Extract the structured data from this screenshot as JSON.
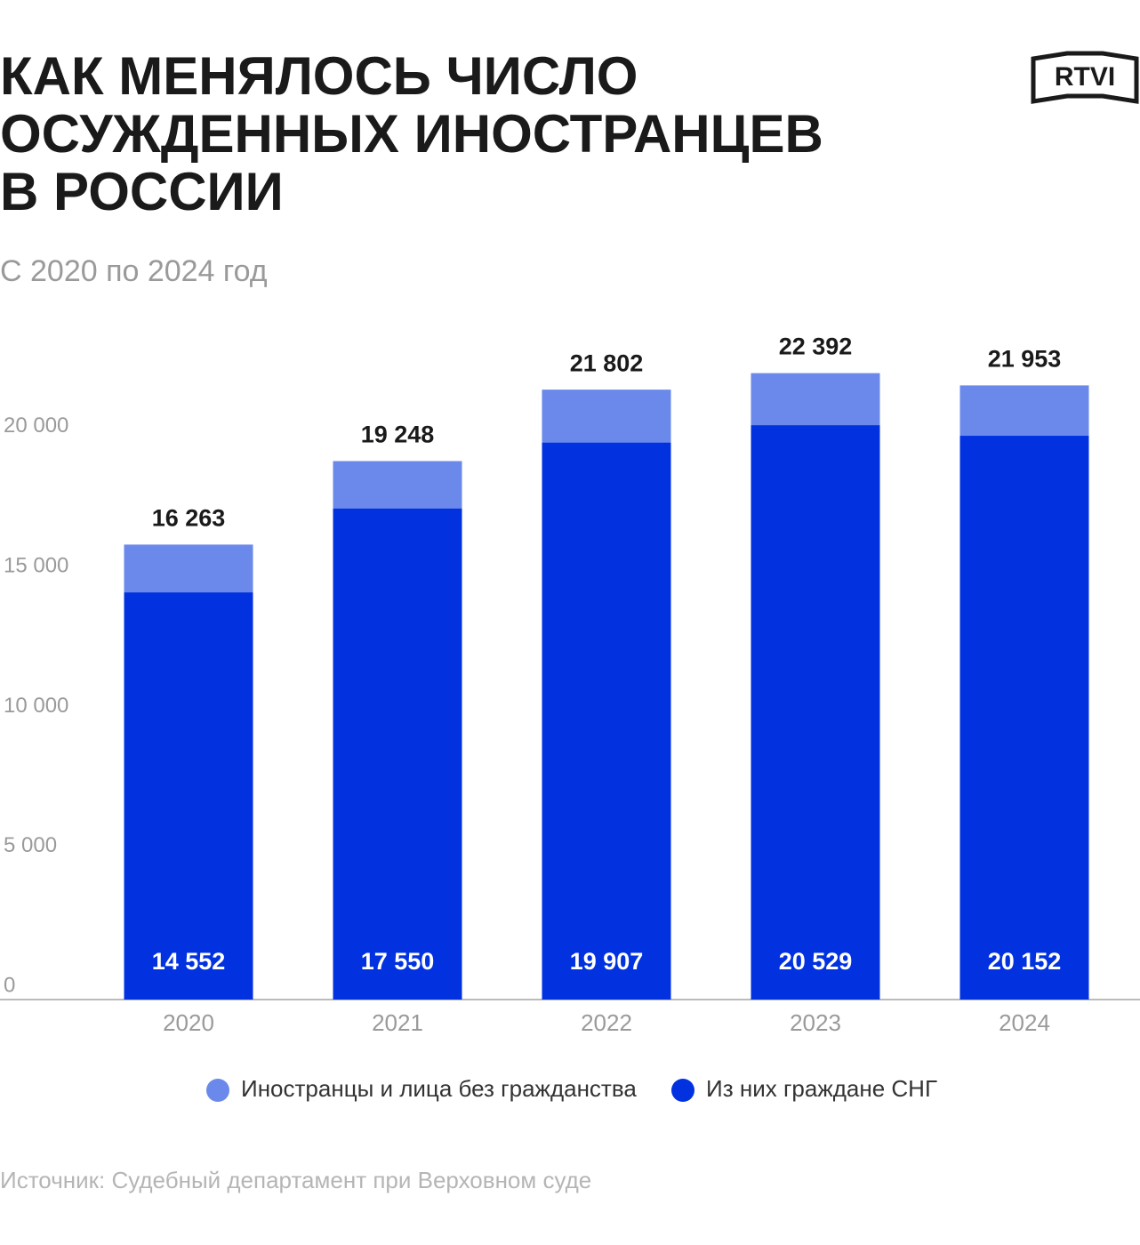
{
  "logo": "RTVI",
  "chart_data": {
    "type": "bar",
    "title": [
      "КАК МЕНЯЛОСЬ ЧИСЛО",
      "ОСУЖДЕННЫХ ИНОСТРАНЦЕВ",
      "В РОССИИ"
    ],
    "subtitle": "С 2020 по 2024 год",
    "source": "Источник: Судебный департамент при Верховном суде",
    "categories": [
      "2020",
      "2021",
      "2022",
      "2023",
      "2024"
    ],
    "series": [
      {
        "name": "Иностранцы и лица без гражданства",
        "color": "#6a89ea",
        "values": [
          16263,
          19248,
          21802,
          22392,
          21953
        ],
        "value_labels": [
          "16 263",
          "19 248",
          "21 802",
          "22 392",
          "21 953"
        ]
      },
      {
        "name": "Из них граждане СНГ",
        "color": "#0232e0",
        "values": [
          14552,
          17550,
          19907,
          20529,
          20152
        ],
        "value_labels": [
          "14 552",
          "17 550",
          "19 907",
          "20 529",
          "20 152"
        ]
      }
    ],
    "ylim": [
      0,
      24000
    ],
    "yticks": [
      0,
      {
        "value": 5000,
        "label": "5 000"
      },
      {
        "value": 10000,
        "label": "10 000"
      },
      {
        "value": 15000,
        "label": "15 000"
      },
      {
        "value": 20000,
        "label": "20 000"
      }
    ],
    "grid": false
  }
}
